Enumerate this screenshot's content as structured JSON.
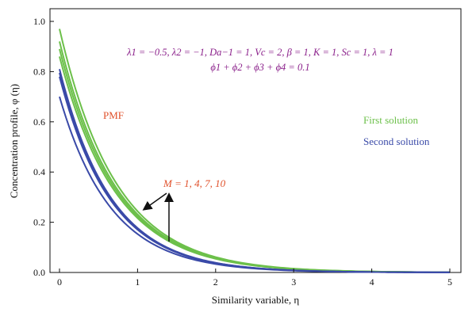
{
  "chart_data": {
    "type": "line",
    "xlabel": "Similarity variable, η",
    "ylabel": "Concentration profile, φ (η)",
    "xlim": [
      0,
      5
    ],
    "ylim": [
      0,
      1.0
    ],
    "x_ticks": [
      "0",
      "1",
      "2",
      "3",
      "4",
      "5"
    ],
    "y_ticks": [
      "0.0",
      "0.2",
      "0.4",
      "0.6",
      "0.8",
      "1.0"
    ],
    "grid": false,
    "parameters_line1": "λ1 = −0.5, λ2 = −1, Da−1 = 1, Vc = 2, β = 1, K = 1, Sc = 1, λ = 1",
    "parameters_line2": "ϕ1 + ϕ2 + ϕ3 + ϕ4 = 0.1",
    "annotations": {
      "pmf": "PMF",
      "m_values": "M = 1, 4, 7, 10"
    },
    "legend": {
      "placement": "right",
      "first": "First solution",
      "second": "Second solution"
    },
    "series": [
      {
        "group": "first",
        "M": 1,
        "y0": 0.86,
        "k": 1.38
      },
      {
        "group": "first",
        "M": 4,
        "y0": 0.89,
        "k": 1.38
      },
      {
        "group": "first",
        "M": 7,
        "y0": 0.92,
        "k": 1.38
      },
      {
        "group": "first",
        "M": 10,
        "y0": 0.97,
        "k": 1.38
      },
      {
        "group": "second",
        "M": 1,
        "y0": 0.7,
        "k": 1.52
      },
      {
        "group": "second",
        "M": 4,
        "y0": 0.78,
        "k": 1.52
      },
      {
        "group": "second",
        "M": 7,
        "y0": 0.795,
        "k": 1.52
      },
      {
        "group": "second",
        "M": 10,
        "y0": 0.81,
        "k": 1.52
      }
    ]
  },
  "colors": {
    "first": "#6cc04a",
    "second": "#3a4aa8",
    "pmf": "#e0502a",
    "m_label": "#e0502a",
    "params": "#8a1f8a"
  }
}
